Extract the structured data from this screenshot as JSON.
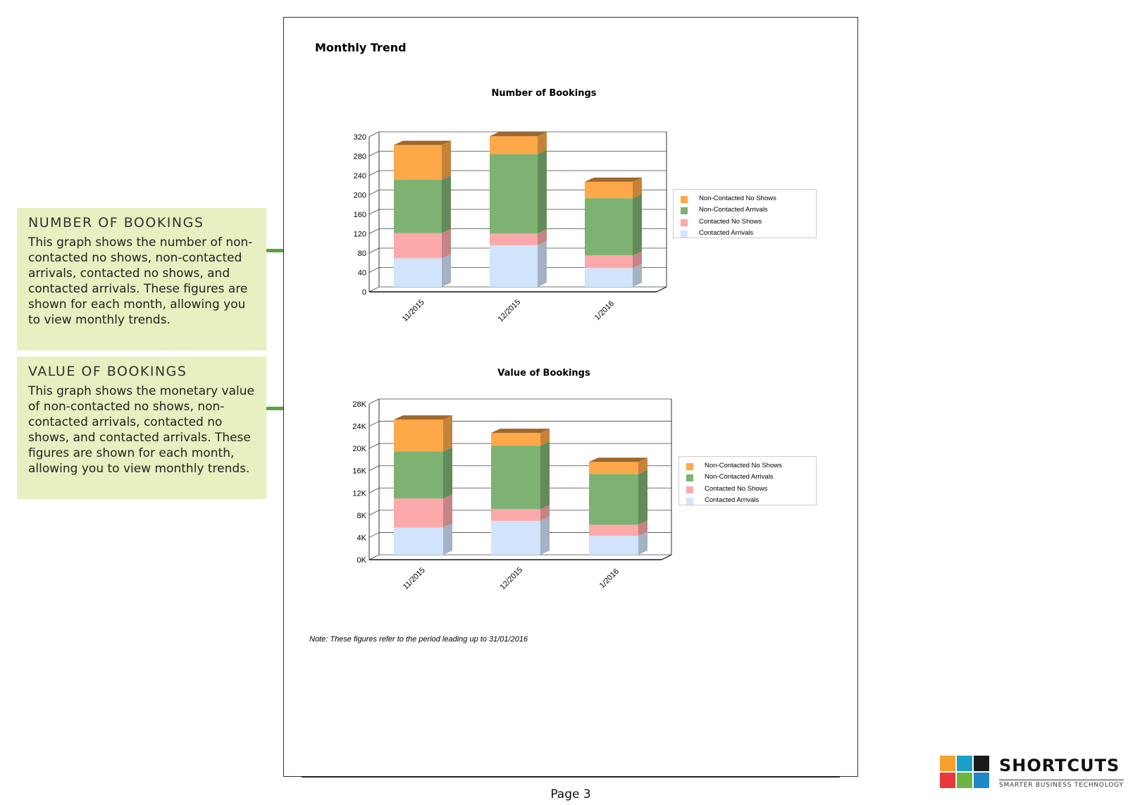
{
  "page": {
    "section_title": "Monthly Trend",
    "note": "Note: These figures refer to the period leading up to 31/01/2016",
    "page_number": "Page 3"
  },
  "callouts": [
    {
      "heading": "NUMBER OF BOOKINGS",
      "body": "This graph shows the number of non-contacted no shows, non-contacted arrivals, contacted no shows, and contacted arrivals. These figures are shown for each month, allowing you to view monthly trends."
    },
    {
      "heading": "VALUE OF BOOKINGS",
      "body": "This graph shows the monetary value of non-contacted no shows, non-contacted arrivals, contacted no shows, and contacted arrivals. These figures are shown for each month, allowing you to view monthly trends."
    }
  ],
  "colors": {
    "Contacted Arrivals": "#d1e4fb",
    "Contacted No Shows": "#fca9ab",
    "Non-Contacted Arrivals": "#7db272",
    "Non-Contacted No Shows": "#fda849",
    "connector": "#5aa342",
    "callout_bg": "#e8efc0"
  },
  "legend_order": [
    "Non-Contacted No Shows",
    "Non-Contacted Arrivals",
    "Contacted No Shows",
    "Contacted Arrivals"
  ],
  "chart_data": [
    {
      "type": "bar",
      "stacked": true,
      "title": "Number of Bookings",
      "categories": [
        "11/2015",
        "12/2015",
        "1/2016"
      ],
      "ylim": [
        0,
        320
      ],
      "yticks": [
        "0",
        "40",
        "80",
        "120",
        "160",
        "200",
        "240",
        "280",
        "320"
      ],
      "ytick_values": [
        0,
        40,
        80,
        120,
        160,
        200,
        240,
        280,
        320
      ],
      "grid": true,
      "legend_position": "right",
      "series": [
        {
          "name": "Contacted Arrivals",
          "values": [
            59,
            86,
            39
          ]
        },
        {
          "name": "Contacted No Shows",
          "values": [
            52,
            24,
            26
          ]
        },
        {
          "name": "Non-Contacted Arrivals",
          "values": [
            110,
            164,
            118
          ]
        },
        {
          "name": "Non-Contacted No Shows",
          "values": [
            72,
            37,
            34
          ]
        }
      ]
    },
    {
      "type": "bar",
      "stacked": true,
      "title": "Value of Bookings",
      "categories": [
        "11/2015",
        "12/2015",
        "1/2016"
      ],
      "ylim": [
        0,
        28000
      ],
      "yticks": [
        "0K",
        "4K",
        "8K",
        "12K",
        "16K",
        "20K",
        "24K",
        "28K"
      ],
      "ytick_values": [
        0,
        4000,
        8000,
        12000,
        16000,
        20000,
        24000,
        28000
      ],
      "grid": true,
      "legend_position": "right",
      "series": [
        {
          "name": "Contacted Arrivals",
          "values": [
            4900,
            6100,
            3400
          ]
        },
        {
          "name": "Contacted No Shows",
          "values": [
            5200,
            2100,
            2000
          ]
        },
        {
          "name": "Non-Contacted Arrivals",
          "values": [
            8500,
            11400,
            9100
          ]
        },
        {
          "name": "Non-Contacted No Shows",
          "values": [
            5700,
            2300,
            2200
          ]
        }
      ]
    }
  ],
  "logo": {
    "name": "SHORTCUTS",
    "tagline": "SMARTER BUSINESS TECHNOLOGY",
    "colors": [
      "#f5a02c",
      "#1aa0c8",
      "#1a1a1a",
      "#e8373d",
      "#6cb545",
      "#1f86c7"
    ]
  }
}
